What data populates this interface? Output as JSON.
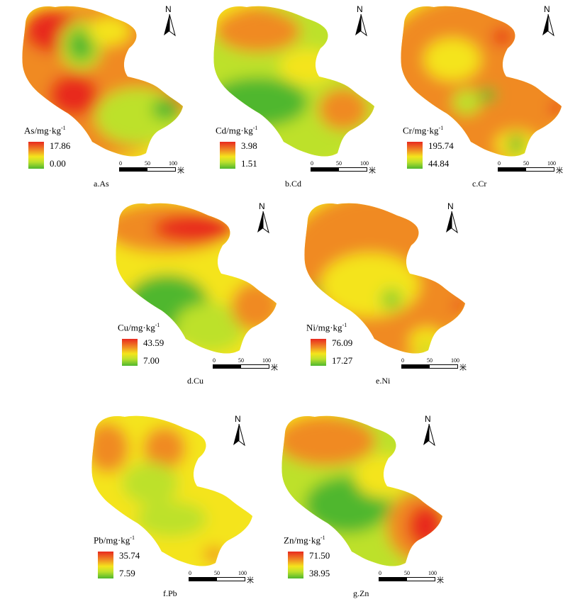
{
  "panels": [
    {
      "id": "as",
      "caption": "a.As",
      "unit_label": "As/mg·kg",
      "unit_sup": "-1",
      "max": "17.86",
      "min": "0.00",
      "dominant": "mixed",
      "hot_region": "north-west and west"
    },
    {
      "id": "cd",
      "caption": "b.Cd",
      "unit_label": "Cd/mg·kg",
      "unit_sup": "-1",
      "max": "3.98",
      "min": "1.51",
      "dominant": "mixed",
      "hot_region": "north and east"
    },
    {
      "id": "cr",
      "caption": "c.Cr",
      "unit_label": "Cr/mg·kg",
      "unit_sup": "-1",
      "max": "195.74",
      "min": "44.84",
      "dominant": "orange",
      "hot_region": "north-east"
    },
    {
      "id": "cu",
      "caption": "d.Cu",
      "unit_label": "Cu/mg·kg",
      "unit_sup": "-1",
      "max": "43.59",
      "min": "7.00",
      "dominant": "mixed",
      "hot_region": "north and east"
    },
    {
      "id": "ni",
      "caption": "e.Ni",
      "unit_label": "Ni/mg·kg",
      "unit_sup": "-1",
      "max": "76.09",
      "min": "17.27",
      "dominant": "orange",
      "hot_region": "east"
    },
    {
      "id": "pb",
      "caption": "f.Pb",
      "unit_label": "Pb/mg·kg",
      "unit_sup": "-1",
      "max": "35.74",
      "min": "7.59",
      "dominant": "yellow",
      "hot_region": "north-west"
    },
    {
      "id": "zn",
      "caption": "g.Zn",
      "unit_label": "Zn/mg·kg",
      "unit_sup": "-1",
      "max": "71.50",
      "min": "38.95",
      "dominant": "mixed",
      "hot_region": "north and east"
    }
  ],
  "scalebar": {
    "ticks": [
      "0",
      "50",
      "100"
    ],
    "unit": "米"
  },
  "north_arrow": {
    "label": "N"
  },
  "colors": {
    "high": "#e8291f",
    "orange": "#f08a24",
    "yellow": "#f4e41c",
    "lightgreen": "#bde12c",
    "green": "#4fb72f"
  }
}
